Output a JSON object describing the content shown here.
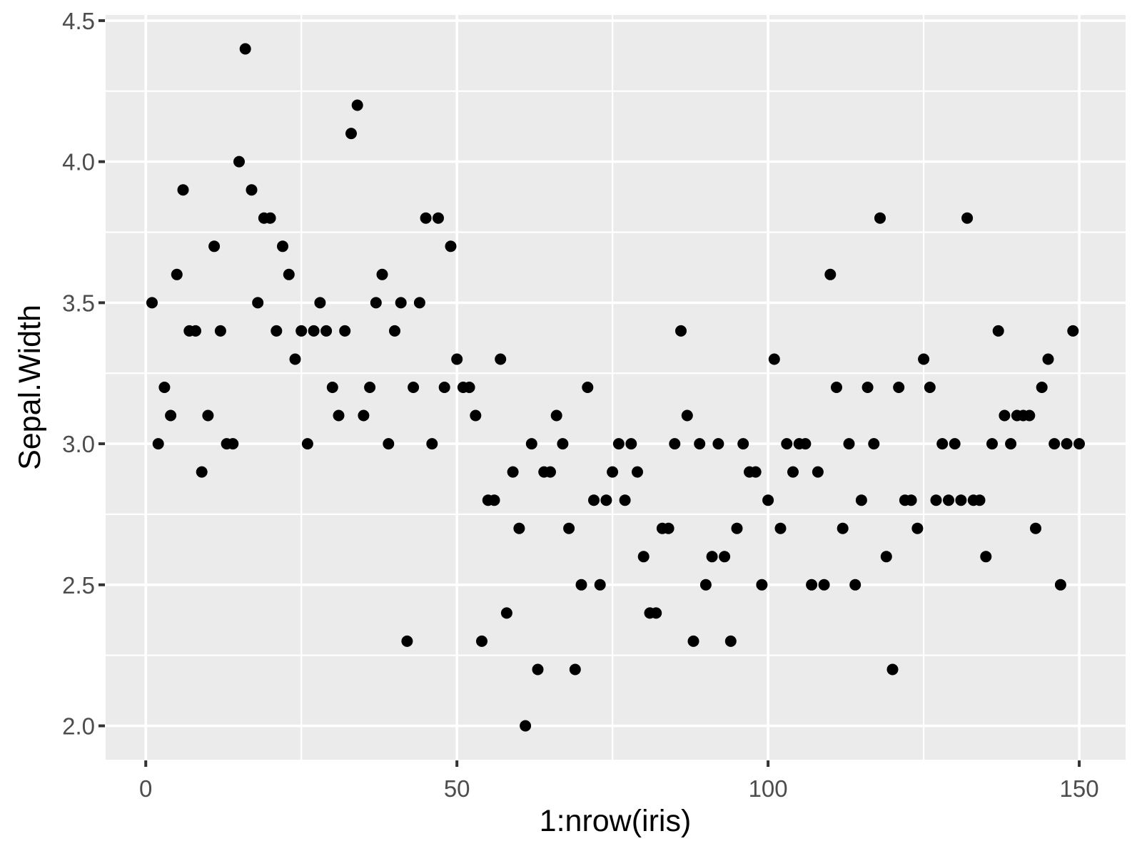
{
  "chart_data": {
    "type": "scatter",
    "title": "",
    "xlabel": "1:nrow(iris)",
    "ylabel": "Sepal.Width",
    "x_description": "integers 1 to 150 (row index)",
    "n_points": 150,
    "y_values": [
      3.5,
      3.0,
      3.2,
      3.1,
      3.6,
      3.9,
      3.4,
      3.4,
      2.9,
      3.1,
      3.7,
      3.4,
      3.0,
      3.0,
      4.0,
      4.4,
      3.9,
      3.5,
      3.8,
      3.8,
      3.4,
      3.7,
      3.6,
      3.3,
      3.4,
      3.0,
      3.4,
      3.5,
      3.4,
      3.2,
      3.1,
      3.4,
      4.1,
      4.2,
      3.1,
      3.2,
      3.5,
      3.6,
      3.0,
      3.4,
      3.5,
      2.3,
      3.2,
      3.5,
      3.8,
      3.0,
      3.8,
      3.2,
      3.7,
      3.3,
      3.2,
      3.2,
      3.1,
      2.3,
      2.8,
      2.8,
      3.3,
      2.4,
      2.9,
      2.7,
      2.0,
      3.0,
      2.2,
      2.9,
      2.9,
      3.1,
      3.0,
      2.7,
      2.2,
      2.5,
      3.2,
      2.8,
      2.5,
      2.8,
      2.9,
      3.0,
      2.8,
      3.0,
      2.9,
      2.6,
      2.4,
      2.4,
      2.7,
      2.7,
      3.0,
      3.4,
      3.1,
      2.3,
      3.0,
      2.5,
      2.6,
      3.0,
      2.6,
      2.3,
      2.7,
      3.0,
      2.9,
      2.9,
      2.5,
      2.8,
      3.3,
      2.7,
      3.0,
      2.9,
      3.0,
      3.0,
      2.5,
      2.9,
      2.5,
      3.6,
      3.2,
      2.7,
      3.0,
      2.5,
      2.8,
      3.2,
      3.0,
      3.8,
      2.6,
      2.2,
      3.2,
      2.8,
      2.8,
      2.7,
      3.3,
      3.2,
      2.8,
      3.0,
      2.8,
      3.0,
      2.8,
      3.8,
      2.8,
      2.8,
      2.6,
      3.0,
      3.4,
      3.1,
      3.0,
      3.1,
      3.1,
      3.1,
      2.7,
      3.2,
      3.3,
      3.0,
      2.5,
      3.0,
      3.4,
      3.0
    ],
    "xlim": [
      -6.45,
      157.45
    ],
    "ylim": [
      1.88,
      4.52
    ],
    "x_tick_values": [
      0,
      50,
      100,
      150
    ],
    "x_tick_labels": [
      "0",
      "50",
      "100",
      "150"
    ],
    "y_tick_values": [
      2.0,
      2.5,
      3.0,
      3.5,
      4.0,
      4.5
    ],
    "y_tick_labels": [
      "2.0",
      "2.5",
      "3.0",
      "3.5",
      "4.0",
      "4.5"
    ],
    "x_minor_ticks": [
      25,
      75,
      125
    ],
    "y_minor_ticks": [
      2.25,
      2.75,
      3.25,
      3.75,
      4.25
    ],
    "grid": true,
    "legend": "none",
    "colors": {
      "figure_background": "#FFFFFF",
      "panel_background": "#EBEBEB",
      "gridline": "#FFFFFF",
      "point": "#000000",
      "tick_label": "#4D4D4D",
      "tick_mark": "#333333",
      "axis_title": "#000000"
    }
  }
}
